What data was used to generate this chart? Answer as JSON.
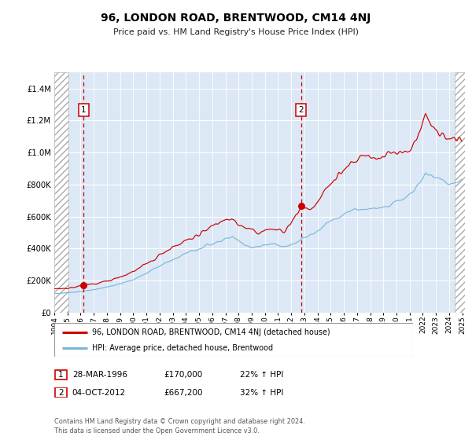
{
  "title": "96, LONDON ROAD, BRENTWOOD, CM14 4NJ",
  "subtitle": "Price paid vs. HM Land Registry's House Price Index (HPI)",
  "legend_line1": "96, LONDON ROAD, BRENTWOOD, CM14 4NJ (detached house)",
  "legend_line2": "HPI: Average price, detached house, Brentwood",
  "annotation1_date": "28-MAR-1996",
  "annotation1_price": "£170,000",
  "annotation1_hpi": "22% ↑ HPI",
  "annotation2_date": "04-OCT-2012",
  "annotation2_price": "£667,200",
  "annotation2_hpi": "32% ↑ HPI",
  "footer": "Contains HM Land Registry data © Crown copyright and database right 2024.\nThis data is licensed under the Open Government Licence v3.0.",
  "red_color": "#cc0000",
  "blue_color": "#7ab4d8",
  "fig_bg": "#ffffff",
  "plot_bg": "#dce8f5",
  "purchase1_year_f": 1996.23,
  "purchase1_value": 170000,
  "purchase2_year_f": 2012.75,
  "purchase2_value": 667200,
  "ylim_max": 1500000
}
